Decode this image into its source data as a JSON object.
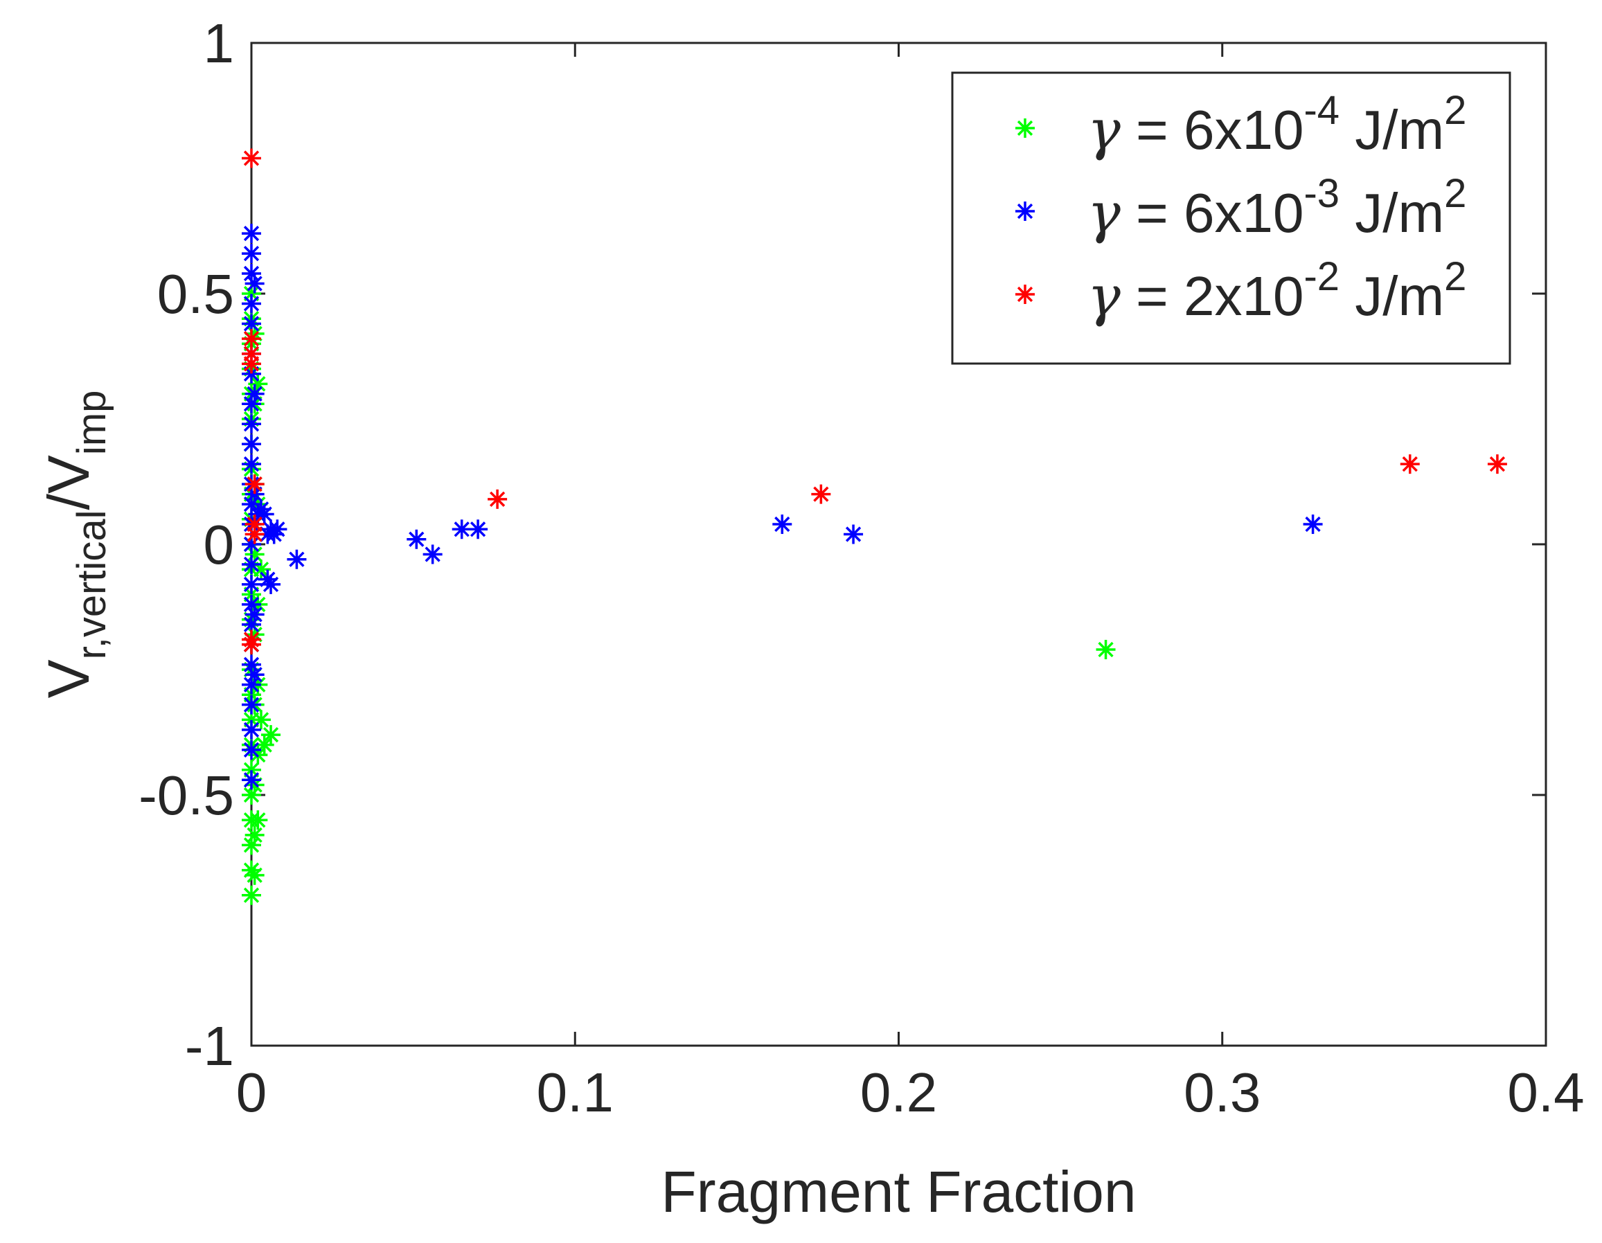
{
  "chart_data": {
    "type": "scatter",
    "xlabel": "Fragment Fraction",
    "ylabel": {
      "base": "V",
      "sub1": "r,vertical",
      "mid": "/V",
      "sub2": "imp"
    },
    "xlim": [
      0,
      0.4
    ],
    "ylim": [
      -1,
      1
    ],
    "x_ticks": [
      0,
      0.1,
      0.2,
      0.3,
      0.4
    ],
    "x_tick_labels": [
      "0",
      "0.1",
      "0.2",
      "0.3",
      "0.4"
    ],
    "y_ticks": [
      -1,
      -0.5,
      0,
      0.5,
      1
    ],
    "y_tick_labels": [
      "-1",
      "-0.5",
      "0",
      "0.5",
      "1"
    ],
    "grid": false,
    "marker": "*",
    "legend_position": "top-right",
    "series": [
      {
        "name": "γ = 6x10-4 J/m2",
        "legend": {
          "symbol": "γ",
          "prefix": " = 6x10",
          "exp": "-4",
          "mid": " J/m",
          "unit_exp": "2"
        },
        "color": "#00ff00",
        "points": [
          [
            0.0,
            0.5
          ],
          [
            0.0,
            0.45
          ],
          [
            0.0,
            0.4
          ],
          [
            0.0,
            0.35
          ],
          [
            0.0,
            0.3
          ],
          [
            0.0,
            0.25
          ],
          [
            0.0,
            0.2
          ],
          [
            0.0,
            0.15
          ],
          [
            0.0,
            0.1
          ],
          [
            0.0,
            0.05
          ],
          [
            0.0,
            0.0
          ],
          [
            0.0,
            -0.05
          ],
          [
            0.0,
            -0.1
          ],
          [
            0.0,
            -0.15
          ],
          [
            0.0,
            -0.2
          ],
          [
            0.0,
            -0.25
          ],
          [
            0.0,
            -0.3
          ],
          [
            0.0,
            -0.35
          ],
          [
            0.0,
            -0.4
          ],
          [
            0.0,
            -0.45
          ],
          [
            0.0,
            -0.5
          ],
          [
            0.0,
            -0.55
          ],
          [
            0.0,
            -0.6
          ],
          [
            0.0,
            -0.65
          ],
          [
            0.0,
            -0.7
          ],
          [
            0.001,
            0.42
          ],
          [
            0.001,
            0.28
          ],
          [
            0.001,
            0.12
          ],
          [
            0.001,
            -0.02
          ],
          [
            0.001,
            -0.18
          ],
          [
            0.001,
            -0.32
          ],
          [
            0.001,
            -0.48
          ],
          [
            0.001,
            -0.58
          ],
          [
            0.001,
            -0.66
          ],
          [
            0.002,
            0.32
          ],
          [
            0.002,
            0.08
          ],
          [
            0.002,
            -0.12
          ],
          [
            0.002,
            -0.28
          ],
          [
            0.002,
            -0.42
          ],
          [
            0.002,
            -0.55
          ],
          [
            0.003,
            -0.35
          ],
          [
            0.003,
            -0.05
          ],
          [
            0.004,
            -0.4
          ],
          [
            0.006,
            -0.38
          ],
          [
            0.264,
            -0.21
          ]
        ]
      },
      {
        "name": "γ = 6x10-3 J/m2",
        "legend": {
          "symbol": "γ",
          "prefix": " = 6x10",
          "exp": "-3",
          "mid": " J/m",
          "unit_exp": "2"
        },
        "color": "#0000ff",
        "points": [
          [
            0.0,
            0.62
          ],
          [
            0.0,
            0.58
          ],
          [
            0.0,
            0.54
          ],
          [
            0.0,
            0.48
          ],
          [
            0.0,
            0.44
          ],
          [
            0.0,
            0.38
          ],
          [
            0.0,
            0.34
          ],
          [
            0.0,
            0.28
          ],
          [
            0.0,
            0.24
          ],
          [
            0.0,
            0.2
          ],
          [
            0.0,
            0.16
          ],
          [
            0.0,
            0.12
          ],
          [
            0.0,
            0.08
          ],
          [
            0.0,
            0.04
          ],
          [
            0.0,
            0.0
          ],
          [
            0.0,
            -0.04
          ],
          [
            0.0,
            -0.08
          ],
          [
            0.0,
            -0.12
          ],
          [
            0.0,
            -0.16
          ],
          [
            0.0,
            -0.2
          ],
          [
            0.0,
            -0.24
          ],
          [
            0.0,
            -0.28
          ],
          [
            0.0,
            -0.32
          ],
          [
            0.0,
            -0.37
          ],
          [
            0.0,
            -0.41
          ],
          [
            0.0,
            -0.47
          ],
          [
            0.001,
            0.52
          ],
          [
            0.001,
            0.3
          ],
          [
            0.001,
            0.1
          ],
          [
            0.001,
            -0.14
          ],
          [
            0.001,
            -0.26
          ],
          [
            0.002,
            0.06
          ],
          [
            0.003,
            0.07
          ],
          [
            0.004,
            0.06
          ],
          [
            0.005,
            0.02
          ],
          [
            0.006,
            0.03
          ],
          [
            0.007,
            0.02
          ],
          [
            0.008,
            0.03
          ],
          [
            0.006,
            -0.08
          ],
          [
            0.005,
            -0.07
          ],
          [
            0.014,
            -0.03
          ],
          [
            0.051,
            0.01
          ],
          [
            0.056,
            -0.02
          ],
          [
            0.065,
            0.03
          ],
          [
            0.07,
            0.03
          ],
          [
            0.164,
            0.04
          ],
          [
            0.186,
            0.02
          ],
          [
            0.328,
            0.04
          ]
        ]
      },
      {
        "name": "γ = 2x10-2 J/m2",
        "legend": {
          "symbol": "γ",
          "prefix": " = 2x10",
          "exp": "-2",
          "mid": " J/m",
          "unit_exp": "2"
        },
        "color": "#ff0000",
        "points": [
          [
            0.0,
            0.77
          ],
          [
            0.0,
            0.41
          ],
          [
            0.0,
            0.38
          ],
          [
            0.0,
            0.36
          ],
          [
            0.001,
            0.12
          ],
          [
            0.001,
            0.04
          ],
          [
            0.001,
            0.02
          ],
          [
            0.0,
            -0.2
          ],
          [
            0.0,
            -0.19
          ],
          [
            0.076,
            0.09
          ],
          [
            0.176,
            0.1
          ],
          [
            0.358,
            0.16
          ],
          [
            0.385,
            0.16
          ]
        ]
      }
    ]
  }
}
